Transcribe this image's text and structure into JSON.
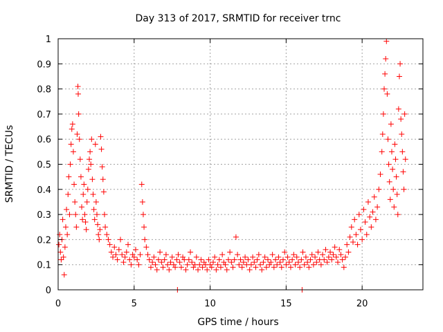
{
  "chart_data": {
    "type": "scatter",
    "title": "Day 313 of 2017, SRMTID for receiver trnc",
    "xlabel": "GPS time / hours",
    "ylabel": "SRMTID / TECUs",
    "xlim": [
      0,
      24
    ],
    "ylim": [
      0,
      1
    ],
    "xticks": [
      0,
      5,
      10,
      15,
      20
    ],
    "xtick_labels": [
      "0",
      "5",
      "10",
      "15",
      "20"
    ],
    "yticks": [
      0,
      0.1,
      0.2,
      0.3,
      0.4,
      0.5,
      0.6,
      0.7,
      0.8,
      0.9,
      1
    ],
    "ytick_labels": [
      "0",
      "0.1",
      "0.2",
      "0.3",
      "0.4",
      "0.5",
      "0.6",
      "0.7",
      "0.8",
      "0.9",
      "1"
    ],
    "grid": true,
    "marker": "+",
    "series": [
      {
        "name": "SRMTID",
        "color": "#ff0000",
        "points": [
          [
            0.05,
            0.18
          ],
          [
            0.1,
            0.22
          ],
          [
            0.15,
            0.15
          ],
          [
            0.2,
            0.12
          ],
          [
            0.25,
            0.2
          ],
          [
            0.3,
            0.28
          ],
          [
            0.35,
            0.13
          ],
          [
            0.4,
            0.06
          ],
          [
            0.45,
            0.17
          ],
          [
            0.5,
            0.25
          ],
          [
            0.55,
            0.32
          ],
          [
            0.6,
            0.22
          ],
          [
            0.65,
            0.38
          ],
          [
            0.7,
            0.45
          ],
          [
            0.75,
            0.3
          ],
          [
            0.8,
            0.5
          ],
          [
            0.85,
            0.58
          ],
          [
            0.9,
            0.64
          ],
          [
            0.95,
            0.66
          ],
          [
            1.0,
            0.55
          ],
          [
            1.05,
            0.42
          ],
          [
            1.1,
            0.35
          ],
          [
            1.15,
            0.3
          ],
          [
            1.2,
            0.25
          ],
          [
            1.25,
            0.62
          ],
          [
            1.3,
            0.81
          ],
          [
            1.32,
            0.78
          ],
          [
            1.35,
            0.7
          ],
          [
            1.4,
            0.6
          ],
          [
            1.45,
            0.52
          ],
          [
            1.5,
            0.45
          ],
          [
            1.55,
            0.33
          ],
          [
            1.6,
            0.28
          ],
          [
            1.65,
            0.38
          ],
          [
            1.7,
            0.42
          ],
          [
            1.75,
            0.3
          ],
          [
            1.8,
            0.27
          ],
          [
            1.85,
            0.24
          ],
          [
            1.9,
            0.35
          ],
          [
            1.95,
            0.4
          ],
          [
            2.0,
            0.48
          ],
          [
            2.05,
            0.52
          ],
          [
            2.1,
            0.55
          ],
          [
            2.15,
            0.5
          ],
          [
            2.2,
            0.6
          ],
          [
            2.25,
            0.44
          ],
          [
            2.3,
            0.38
          ],
          [
            2.35,
            0.32
          ],
          [
            2.4,
            0.28
          ],
          [
            2.45,
            0.58
          ],
          [
            2.5,
            0.35
          ],
          [
            2.55,
            0.3
          ],
          [
            2.6,
            0.26
          ],
          [
            2.65,
            0.22
          ],
          [
            2.7,
            0.2
          ],
          [
            2.75,
            0.24
          ],
          [
            2.8,
            0.61
          ],
          [
            2.85,
            0.56
          ],
          [
            2.9,
            0.49
          ],
          [
            2.95,
            0.44
          ],
          [
            3.0,
            0.39
          ],
          [
            3.05,
            0.3
          ],
          [
            3.1,
            0.25
          ],
          [
            3.2,
            0.22
          ],
          [
            3.3,
            0.2
          ],
          [
            3.4,
            0.18
          ],
          [
            3.5,
            0.15
          ],
          [
            3.6,
            0.13
          ],
          [
            3.7,
            0.17
          ],
          [
            3.8,
            0.14
          ],
          [
            3.9,
            0.12
          ],
          [
            4.0,
            0.16
          ],
          [
            4.1,
            0.2
          ],
          [
            4.2,
            0.14
          ],
          [
            4.3,
            0.11
          ],
          [
            4.4,
            0.13
          ],
          [
            4.5,
            0.15
          ],
          [
            4.6,
            0.18
          ],
          [
            4.7,
            0.12
          ],
          [
            4.8,
            0.1
          ],
          [
            4.9,
            0.14
          ],
          [
            5.0,
            0.13
          ],
          [
            5.1,
            0.16
          ],
          [
            5.2,
            0.12
          ],
          [
            5.3,
            0.1
          ],
          [
            5.4,
            0.14
          ],
          [
            5.5,
            0.42
          ],
          [
            5.55,
            0.35
          ],
          [
            5.6,
            0.3
          ],
          [
            5.65,
            0.25
          ],
          [
            5.7,
            0.2
          ],
          [
            5.8,
            0.17
          ],
          [
            5.9,
            0.14
          ],
          [
            6.0,
            0.12
          ],
          [
            6.1,
            0.09
          ],
          [
            6.2,
            0.11
          ],
          [
            6.3,
            0.13
          ],
          [
            6.4,
            0.1
          ],
          [
            6.5,
            0.08
          ],
          [
            6.6,
            0.12
          ],
          [
            6.7,
            0.15
          ],
          [
            6.8,
            0.11
          ],
          [
            6.9,
            0.09
          ],
          [
            7.0,
            0.12
          ],
          [
            7.1,
            0.14
          ],
          [
            7.2,
            0.1
          ],
          [
            7.3,
            0.08
          ],
          [
            7.4,
            0.11
          ],
          [
            7.5,
            0.13
          ],
          [
            7.6,
            0.1
          ],
          [
            7.7,
            0.09
          ],
          [
            7.8,
            0.12
          ],
          [
            7.85,
            0.0
          ],
          [
            7.9,
            0.14
          ],
          [
            8.0,
            0.11
          ],
          [
            8.1,
            0.09
          ],
          [
            8.2,
            0.13
          ],
          [
            8.3,
            0.12
          ],
          [
            8.4,
            0.08
          ],
          [
            8.5,
            0.1
          ],
          [
            8.6,
            0.12
          ],
          [
            8.7,
            0.15
          ],
          [
            8.8,
            0.11
          ],
          [
            8.9,
            0.09
          ],
          [
            9.0,
            0.1
          ],
          [
            9.1,
            0.13
          ],
          [
            9.2,
            0.08
          ],
          [
            9.3,
            0.1
          ],
          [
            9.4,
            0.12
          ],
          [
            9.5,
            0.09
          ],
          [
            9.6,
            0.11
          ],
          [
            9.7,
            0.1
          ],
          [
            9.8,
            0.08
          ],
          [
            9.9,
            0.12
          ],
          [
            10.0,
            0.1
          ],
          [
            10.1,
            0.09
          ],
          [
            10.2,
            0.11
          ],
          [
            10.3,
            0.13
          ],
          [
            10.4,
            0.08
          ],
          [
            10.5,
            0.1
          ],
          [
            10.6,
            0.12
          ],
          [
            10.7,
            0.09
          ],
          [
            10.8,
            0.14
          ],
          [
            10.9,
            0.11
          ],
          [
            11.0,
            0.1
          ],
          [
            11.1,
            0.08
          ],
          [
            11.2,
            0.12
          ],
          [
            11.3,
            0.15
          ],
          [
            11.4,
            0.11
          ],
          [
            11.5,
            0.09
          ],
          [
            11.6,
            0.12
          ],
          [
            11.7,
            0.21
          ],
          [
            11.8,
            0.14
          ],
          [
            11.9,
            0.1
          ],
          [
            12.0,
            0.12
          ],
          [
            12.1,
            0.09
          ],
          [
            12.2,
            0.11
          ],
          [
            12.3,
            0.13
          ],
          [
            12.4,
            0.1
          ],
          [
            12.5,
            0.12
          ],
          [
            12.6,
            0.08
          ],
          [
            12.7,
            0.1
          ],
          [
            12.8,
            0.13
          ],
          [
            12.9,
            0.11
          ],
          [
            13.0,
            0.09
          ],
          [
            13.1,
            0.12
          ],
          [
            13.2,
            0.14
          ],
          [
            13.3,
            0.1
          ],
          [
            13.4,
            0.08
          ],
          [
            13.5,
            0.11
          ],
          [
            13.6,
            0.13
          ],
          [
            13.7,
            0.09
          ],
          [
            13.8,
            0.12
          ],
          [
            13.9,
            0.1
          ],
          [
            14.0,
            0.11
          ],
          [
            14.1,
            0.14
          ],
          [
            14.2,
            0.09
          ],
          [
            14.3,
            0.12
          ],
          [
            14.4,
            0.1
          ],
          [
            14.5,
            0.13
          ],
          [
            14.6,
            0.11
          ],
          [
            14.7,
            0.09
          ],
          [
            14.8,
            0.12
          ],
          [
            14.9,
            0.15
          ],
          [
            15.0,
            0.1
          ],
          [
            15.1,
            0.13
          ],
          [
            15.2,
            0.11
          ],
          [
            15.3,
            0.09
          ],
          [
            15.4,
            0.12
          ],
          [
            15.5,
            0.14
          ],
          [
            15.6,
            0.1
          ],
          [
            15.7,
            0.13
          ],
          [
            15.8,
            0.11
          ],
          [
            15.9,
            0.09
          ],
          [
            16.0,
            0.12
          ],
          [
            16.05,
            0.0
          ],
          [
            16.1,
            0.15
          ],
          [
            16.2,
            0.1
          ],
          [
            16.3,
            0.13
          ],
          [
            16.4,
            0.11
          ],
          [
            16.5,
            0.09
          ],
          [
            16.6,
            0.12
          ],
          [
            16.7,
            0.14
          ],
          [
            16.8,
            0.1
          ],
          [
            16.9,
            0.13
          ],
          [
            17.0,
            0.11
          ],
          [
            17.1,
            0.15
          ],
          [
            17.2,
            0.12
          ],
          [
            17.3,
            0.1
          ],
          [
            17.4,
            0.14
          ],
          [
            17.5,
            0.12
          ],
          [
            17.6,
            0.16
          ],
          [
            17.7,
            0.11
          ],
          [
            17.8,
            0.13
          ],
          [
            17.9,
            0.15
          ],
          [
            18.0,
            0.12
          ],
          [
            18.1,
            0.14
          ],
          [
            18.2,
            0.17
          ],
          [
            18.3,
            0.13
          ],
          [
            18.4,
            0.11
          ],
          [
            18.5,
            0.16
          ],
          [
            18.6,
            0.14
          ],
          [
            18.7,
            0.12
          ],
          [
            18.8,
            0.09
          ],
          [
            18.9,
            0.13
          ],
          [
            19.0,
            0.18
          ],
          [
            19.1,
            0.15
          ],
          [
            19.2,
            0.21
          ],
          [
            19.3,
            0.25
          ],
          [
            19.4,
            0.19
          ],
          [
            19.5,
            0.28
          ],
          [
            19.6,
            0.22
          ],
          [
            19.7,
            0.18
          ],
          [
            19.8,
            0.3
          ],
          [
            19.9,
            0.24
          ],
          [
            20.0,
            0.2
          ],
          [
            20.1,
            0.32
          ],
          [
            20.2,
            0.27
          ],
          [
            20.3,
            0.22
          ],
          [
            20.4,
            0.35
          ],
          [
            20.5,
            0.29
          ],
          [
            20.6,
            0.25
          ],
          [
            20.7,
            0.31
          ],
          [
            20.8,
            0.37
          ],
          [
            20.9,
            0.28
          ],
          [
            21.0,
            0.33
          ],
          [
            21.1,
            0.4
          ],
          [
            21.2,
            0.46
          ],
          [
            21.3,
            0.55
          ],
          [
            21.35,
            0.62
          ],
          [
            21.4,
            0.7
          ],
          [
            21.45,
            0.8
          ],
          [
            21.5,
            0.86
          ],
          [
            21.55,
            0.92
          ],
          [
            21.6,
            0.99
          ],
          [
            21.65,
            0.78
          ],
          [
            21.7,
            0.6
          ],
          [
            21.75,
            0.5
          ],
          [
            21.8,
            0.43
          ],
          [
            21.85,
            0.36
          ],
          [
            21.9,
            0.66
          ],
          [
            21.95,
            0.55
          ],
          [
            22.0,
            0.48
          ],
          [
            22.05,
            0.4
          ],
          [
            22.1,
            0.33
          ],
          [
            22.15,
            0.58
          ],
          [
            22.2,
            0.52
          ],
          [
            22.25,
            0.45
          ],
          [
            22.3,
            0.38
          ],
          [
            22.35,
            0.3
          ],
          [
            22.4,
            0.72
          ],
          [
            22.45,
            0.85
          ],
          [
            22.5,
            0.9
          ],
          [
            22.55,
            0.68
          ],
          [
            22.6,
            0.62
          ],
          [
            22.65,
            0.55
          ],
          [
            22.7,
            0.47
          ],
          [
            22.75,
            0.4
          ],
          [
            22.8,
            0.7
          ],
          [
            22.85,
            0.52
          ]
        ]
      }
    ]
  }
}
